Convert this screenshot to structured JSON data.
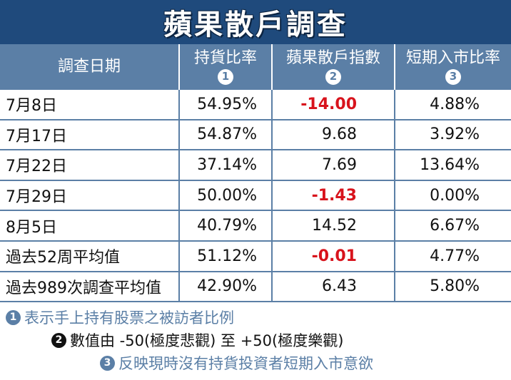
{
  "title": "蘋果散戶調查",
  "headers": [
    {
      "label": "調查日期",
      "num": ""
    },
    {
      "label": "持貨比率",
      "num": "1"
    },
    {
      "label": "蘋果散戶指數",
      "num": "2"
    },
    {
      "label": "短期入市比率",
      "num": "3"
    }
  ],
  "rows": [
    {
      "date": "7月8日",
      "hold": "54.95%",
      "index": "-14.00",
      "short": "4.88%"
    },
    {
      "date": "7月17日",
      "hold": "54.87%",
      "index": "9.68",
      "short": "3.92%"
    },
    {
      "date": "7月22日",
      "hold": "37.14%",
      "index": "7.69",
      "short": "13.64%"
    },
    {
      "date": "7月29日",
      "hold": "50.00%",
      "index": "-1.43",
      "short": "0.00%"
    },
    {
      "date": "8月5日",
      "hold": "40.79%",
      "index": "14.52",
      "short": "6.67%"
    },
    {
      "date": "過去52周平均值",
      "hold": "51.12%",
      "index": "-0.01",
      "short": "4.77%"
    },
    {
      "date": "過去989次調查平均值",
      "hold": "42.90%",
      "index": "6.43",
      "short": "5.80%"
    }
  ],
  "notes": [
    {
      "num": "1",
      "text": "表示手上持有股票之被訪者比例"
    },
    {
      "num": "2",
      "text": "數值由 -50(極度悲觀) 至 +50(極度樂觀)"
    },
    {
      "num": "3",
      "text": "反映現時沒有持貨投資者短期入市意欲"
    }
  ],
  "colors": {
    "title_bg": "#1f4a7c",
    "header_bg": "#5b7fa6",
    "negative": "#d8131c"
  }
}
